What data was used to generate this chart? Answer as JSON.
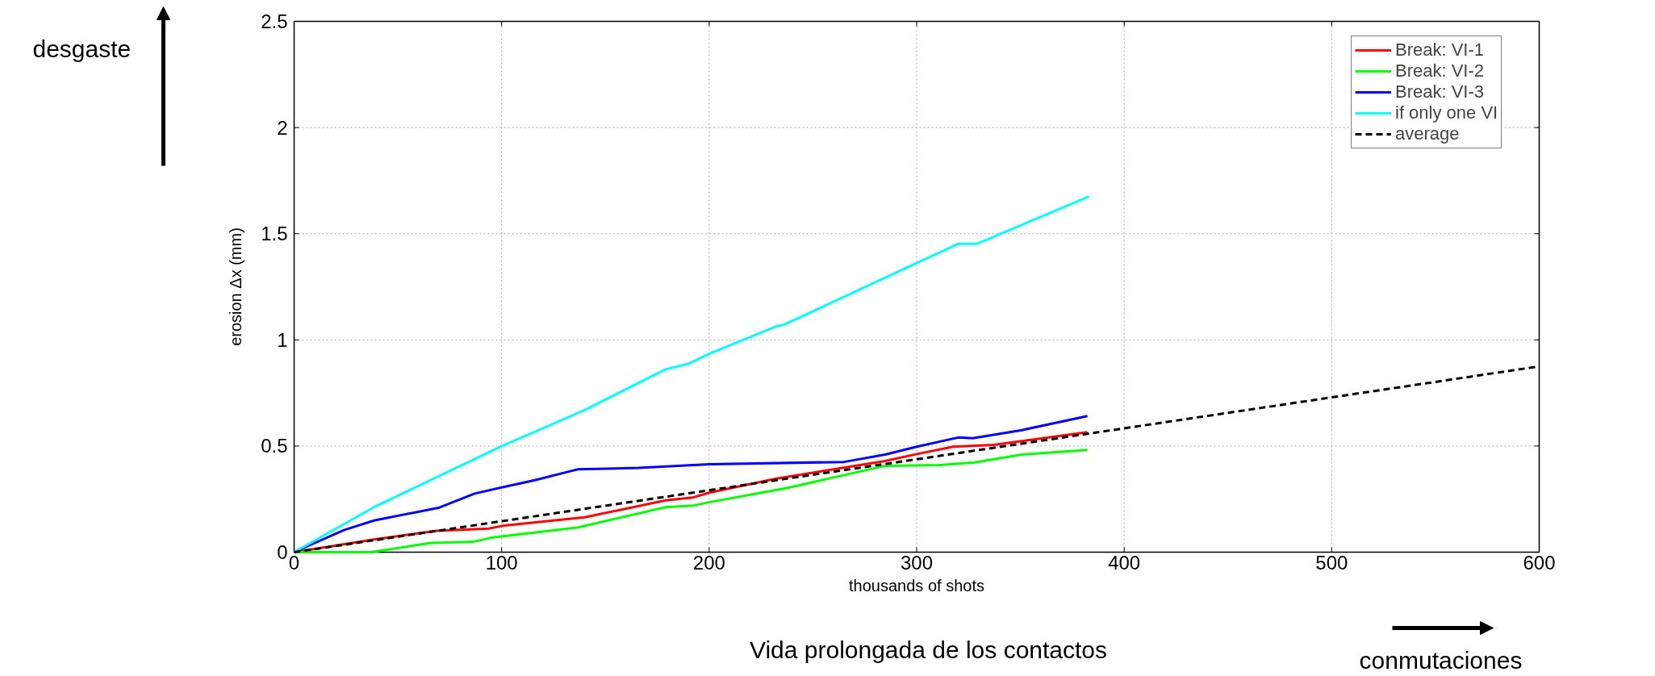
{
  "chart_data": {
    "type": "line",
    "xlabel": "thousands of shots",
    "ylabel": "erosion Δx (mm)",
    "xlim": [
      0,
      600
    ],
    "ylim": [
      0,
      2.5
    ],
    "xticks": [
      0,
      100,
      200,
      300,
      400,
      500,
      600
    ],
    "yticks": [
      0,
      0.5,
      1,
      1.5,
      2,
      2.5
    ],
    "grid": true,
    "legend": "top right",
    "line_style": "solid",
    "series": [
      {
        "name": "Break: VI-1",
        "color": "#ff0000",
        "x": [
          0,
          38.5,
          68.8,
          93.8,
          100.4,
          140,
          179,
          192,
          200,
          232,
          284.8,
          300.5,
          317.6,
          337,
          382.3
        ],
        "values": [
          0,
          0.06,
          0.101,
          0.111,
          0.124,
          0.164,
          0.244,
          0.257,
          0.28,
          0.346,
          0.429,
          0.463,
          0.497,
          0.505,
          0.565
        ]
      },
      {
        "name": "Break: VI-2",
        "color": "#00ff00",
        "x": [
          0,
          37,
          66,
          86,
          95,
          137,
          179,
          192,
          200,
          238.9,
          285,
          311,
          328,
          350.7,
          382.3
        ],
        "values": [
          0,
          0,
          0.044,
          0.048,
          0.068,
          0.117,
          0.212,
          0.219,
          0.235,
          0.305,
          0.407,
          0.41,
          0.423,
          0.46,
          0.482
        ]
      },
      {
        "name": "Break: VI-3",
        "color": "#0000ff",
        "x": [
          0,
          24,
          38.5,
          70,
          87,
          100,
          116,
          136.6,
          166,
          200,
          265,
          284.8,
          300.5,
          320,
          327,
          350.7,
          382.3
        ],
        "values": [
          0,
          0.104,
          0.149,
          0.21,
          0.276,
          0.305,
          0.339,
          0.39,
          0.397,
          0.414,
          0.425,
          0.46,
          0.498,
          0.54,
          0.537,
          0.575,
          0.641
        ]
      },
      {
        "name": "if only one VI",
        "color": "#00ffff",
        "x": [
          0,
          38.5,
          100,
          140,
          179,
          190,
          200,
          232.8,
          236,
          301,
          320,
          329,
          383
        ],
        "values": [
          0,
          0.212,
          0.499,
          0.669,
          0.861,
          0.887,
          0.934,
          1.065,
          1.071,
          1.366,
          1.452,
          1.452,
          1.675
        ]
      },
      {
        "name": "average",
        "color": "#000000",
        "line_style": "dashed",
        "x": [
          0,
          600
        ],
        "values": [
          0,
          0.875
        ]
      }
    ],
    "annotations": [
      "desgaste",
      "Vida prolongada de los contactos",
      "conmutaciones"
    ]
  }
}
